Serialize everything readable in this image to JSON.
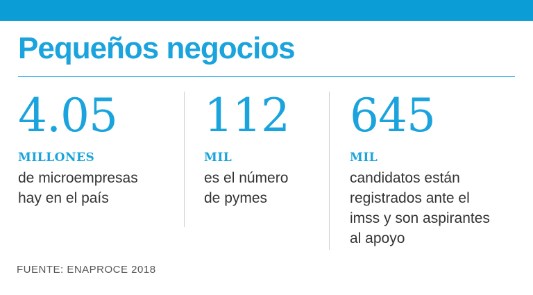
{
  "colors": {
    "accent": "#1aa3dc",
    "bar": "#0b9ed6",
    "text": "#333333"
  },
  "title": "Pequeños negocios",
  "stats": [
    {
      "value": "4.05",
      "unit": "MILLONES",
      "description_lines": [
        "de microempresas",
        "hay en el país"
      ]
    },
    {
      "value": "112",
      "unit": "MIL",
      "description_lines": [
        "es el número",
        "de pymes"
      ]
    },
    {
      "value": "645",
      "unit": "MIL",
      "description_lines": [
        "candidatos están",
        "registrados ante el",
        "imss y son aspirantes",
        "al apoyo"
      ]
    }
  ],
  "source": "FUENTE: ENAPROCE 2018"
}
